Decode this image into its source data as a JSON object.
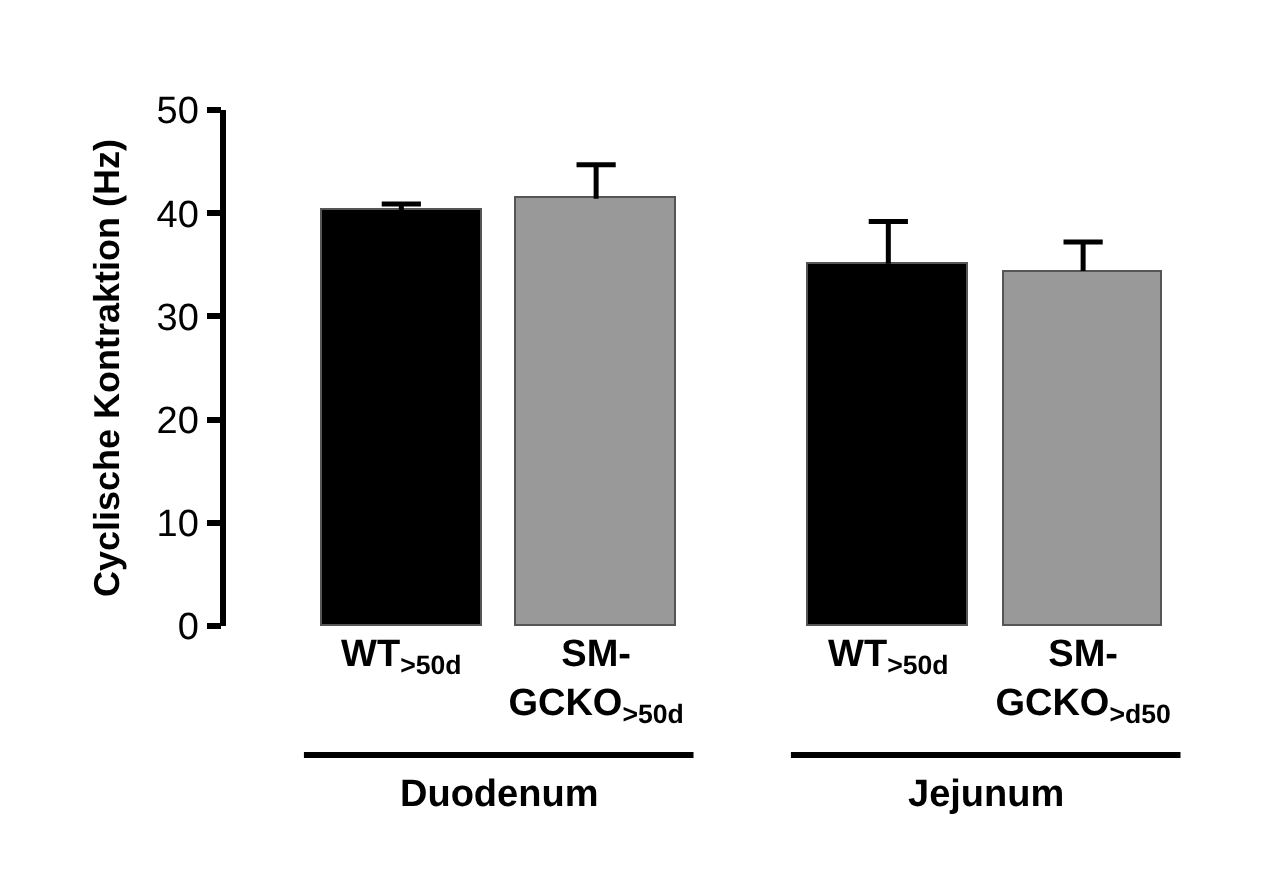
{
  "chart_data": {
    "type": "bar",
    "ylabel": "Cyclische Kontraktion (Hz)",
    "categories": [
      "WT$_{>50d}$",
      "SM-GCKO$_{>50d}$",
      "WT$_{>50d}$",
      "SM-GCKO$_{>d50}$"
    ],
    "values": [
      40.3,
      41.4,
      35.1,
      34.4
    ],
    "colors": [
      "#000000",
      "#999999",
      "#000000",
      "#999999"
    ],
    "errors": [
      [
        40.3,
        40.9
      ],
      [
        41.4,
        44.7
      ],
      [
        35.1,
        39.2
      ],
      [
        34.4,
        37.2
      ]
    ],
    "ylim": [
      0,
      50
    ],
    "yticks": [
      0,
      10,
      20,
      30,
      40,
      50
    ],
    "annotations": [
      "Duodenum",
      "Jejunum"
    ]
  }
}
